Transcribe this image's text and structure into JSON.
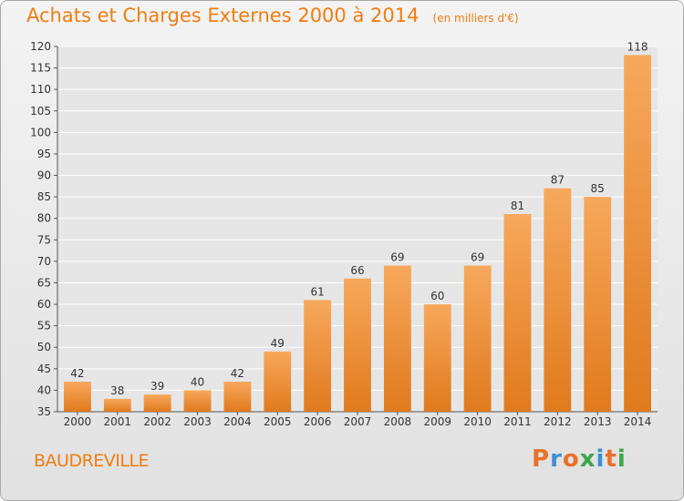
{
  "header": {
    "title": "Achats et Charges Externes 2000 à 2014",
    "unit": "(en milliers d'€)"
  },
  "footer": {
    "commune": "BAUDREVILLE",
    "logo_text": "Proxiti",
    "logo_colors": [
      "#e8722a",
      "#3c8fd6",
      "#e8722a",
      "#3da64a",
      "#3c8fd6",
      "#e8722a",
      "#3da64a"
    ]
  },
  "colors": {
    "accent": "#f07d10",
    "bar_light": "#f7a85c",
    "bar_dark": "#e07a1e",
    "grid": "#ffffff"
  },
  "chart_data": {
    "type": "bar",
    "categories": [
      "2000",
      "2001",
      "2002",
      "2003",
      "2004",
      "2005",
      "2006",
      "2007",
      "2008",
      "2009",
      "2010",
      "2011",
      "2012",
      "2013",
      "2014"
    ],
    "values": [
      42,
      38,
      39,
      40,
      42,
      49,
      61,
      66,
      69,
      60,
      69,
      81,
      87,
      85,
      118
    ],
    "ylim": [
      35,
      120
    ],
    "yticks": [
      35,
      40,
      45,
      50,
      55,
      60,
      65,
      70,
      75,
      80,
      85,
      90,
      95,
      100,
      105,
      110,
      115,
      120
    ],
    "grid": true,
    "data_labels": true
  }
}
